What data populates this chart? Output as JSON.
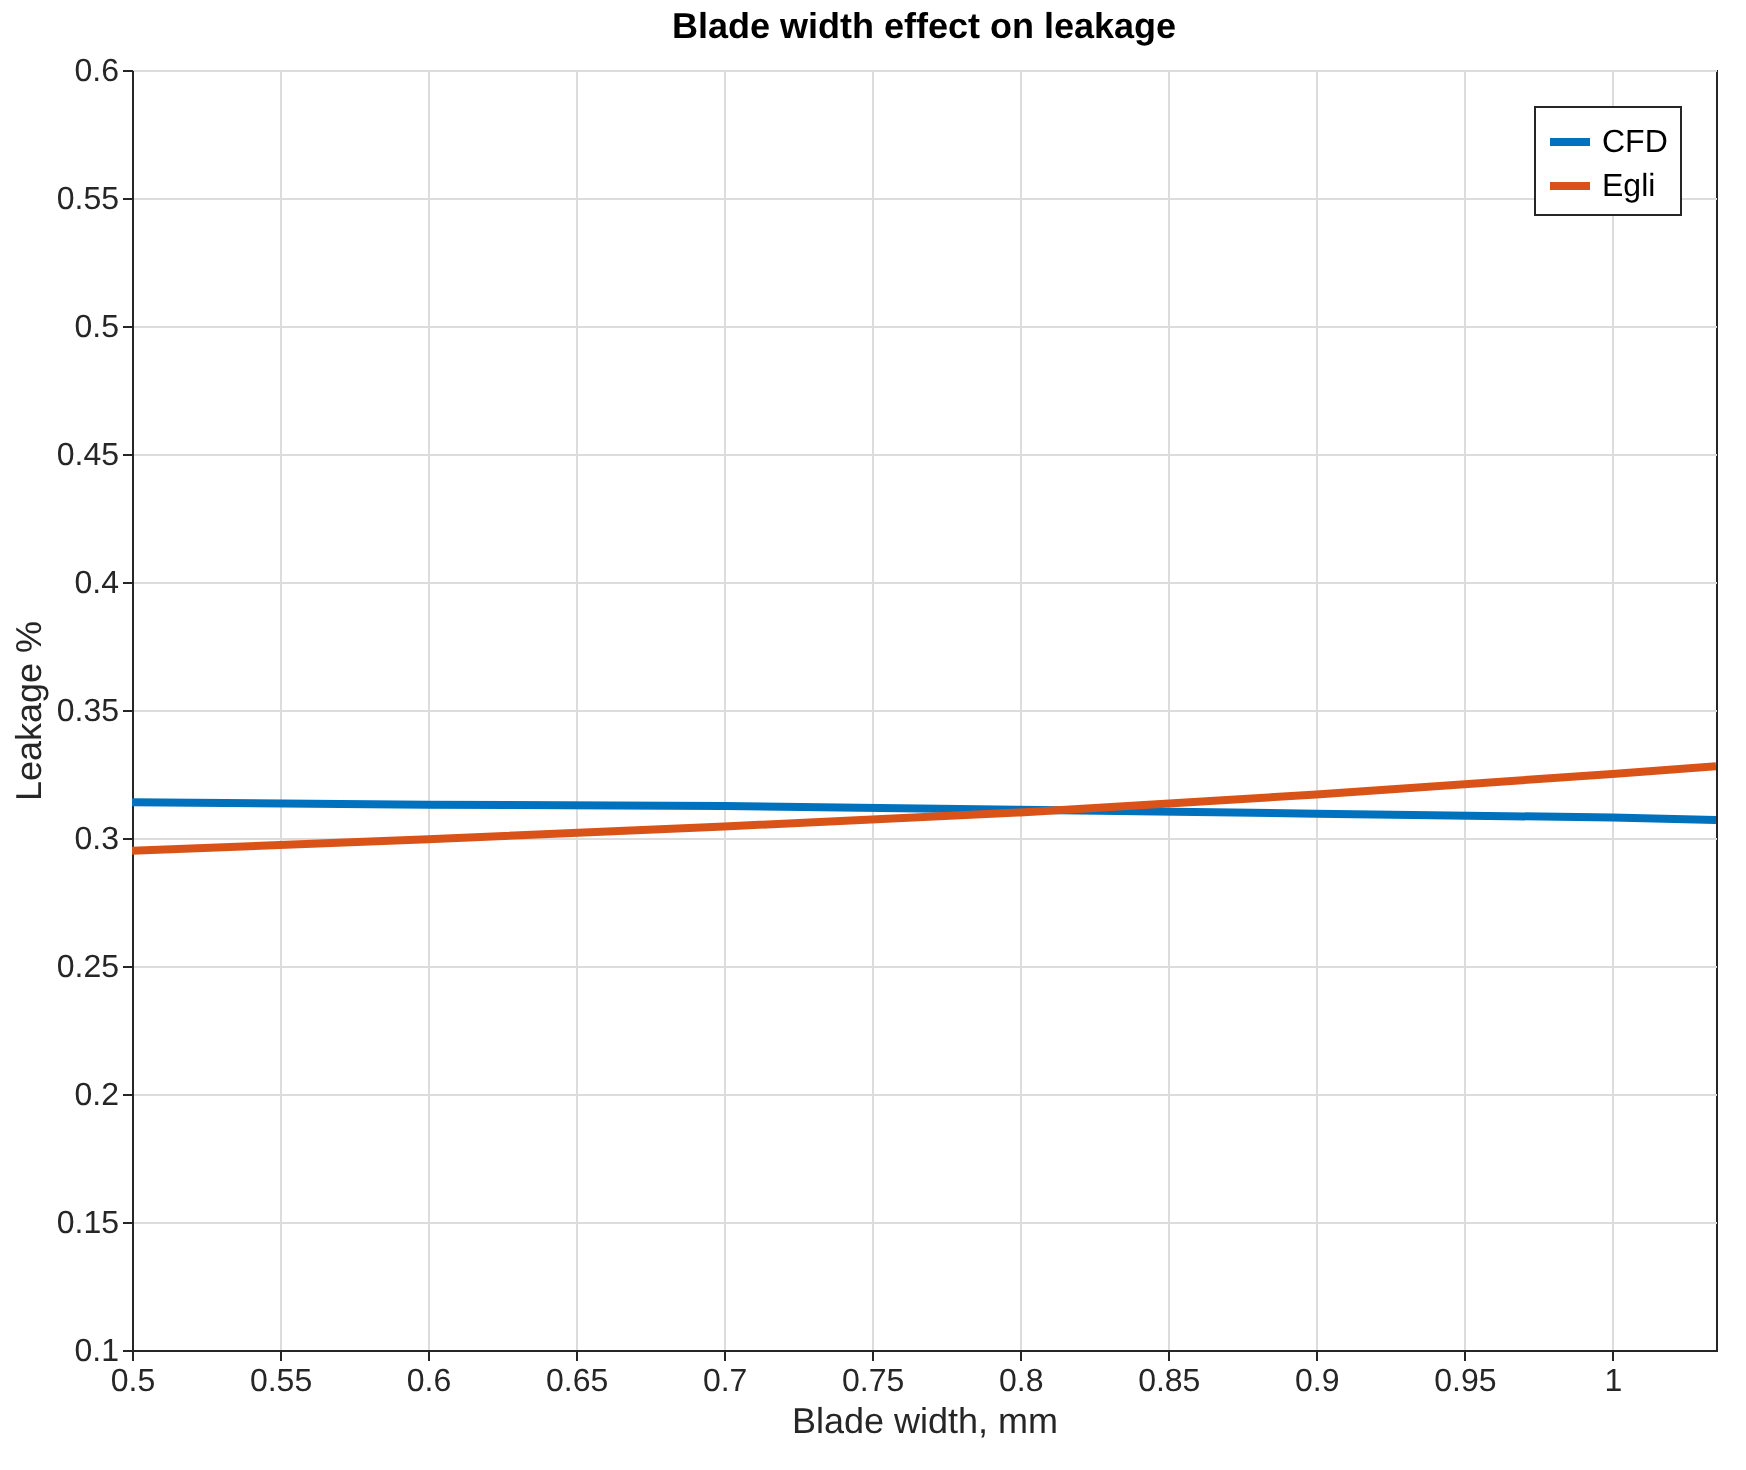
{
  "chart_data": {
    "type": "line",
    "title": "Blade width effect on leakage",
    "xlabel": "Blade width, mm",
    "ylabel": "Leakage %",
    "x": [
      0.5,
      0.6,
      0.7,
      0.8,
      0.9,
      1.0,
      1.035
    ],
    "series": [
      {
        "name": "CFD",
        "color": "#0072bd",
        "values": [
          0.314,
          0.313,
          0.3125,
          0.311,
          0.3095,
          0.308,
          0.307
        ]
      },
      {
        "name": "Egli",
        "color": "#d95319",
        "values": [
          0.295,
          0.2995,
          0.3045,
          0.31,
          0.317,
          0.325,
          0.328
        ]
      }
    ],
    "xlim": [
      0.5,
      1.035
    ],
    "xticks": [
      0.5,
      0.55,
      0.6,
      0.65,
      0.7,
      0.75,
      0.8,
      0.85,
      0.9,
      0.95,
      1
    ],
    "ylim": [
      0.1,
      0.6
    ],
    "yticks": [
      0.1,
      0.15,
      0.2,
      0.25,
      0.3,
      0.35,
      0.4,
      0.45,
      0.5,
      0.55,
      0.6
    ],
    "grid": true,
    "legend": "top right",
    "marker": "none",
    "line_style": "solid"
  }
}
